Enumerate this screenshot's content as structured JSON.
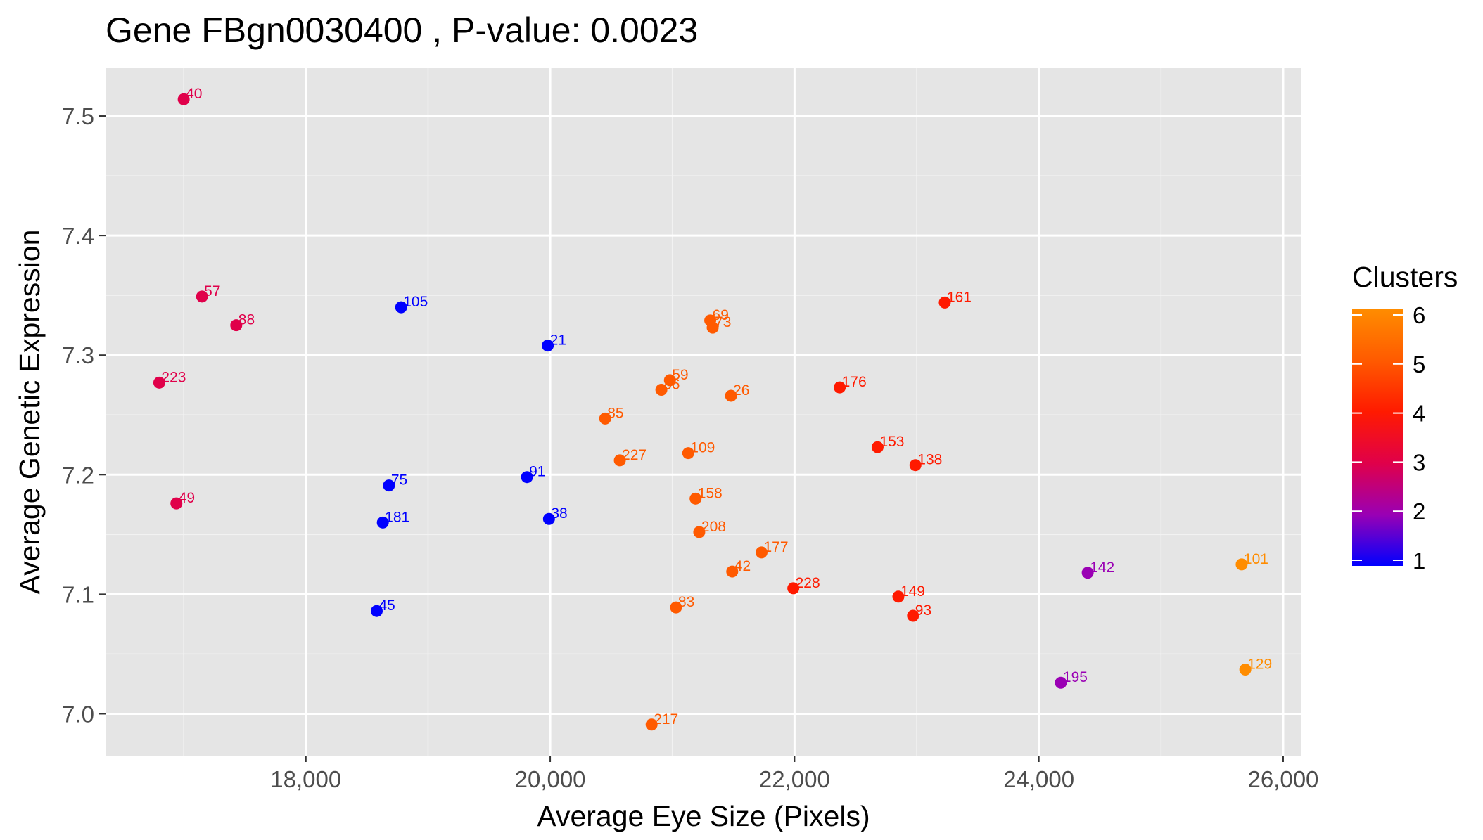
{
  "chart_data": {
    "type": "scatter",
    "title": "Gene FBgn0030400 , P-value: 0.0023",
    "xlabel": "Average Eye Size (Pixels)",
    "ylabel": "Average Genetic Expression",
    "xlim": [
      16360,
      26150
    ],
    "ylim": [
      6.965,
      7.54
    ],
    "x_ticks": [
      18000,
      20000,
      22000,
      24000,
      26000
    ],
    "x_tick_labels": [
      "18,000",
      "20,000",
      "22,000",
      "24,000",
      "26,000"
    ],
    "y_ticks": [
      7.0,
      7.1,
      7.2,
      7.3,
      7.4,
      7.5
    ],
    "y_tick_labels": [
      "7.0",
      "7.1",
      "7.2",
      "7.3",
      "7.4",
      "7.5"
    ],
    "grid": true,
    "background": "#e5e5e5",
    "legend": {
      "title": "Clusters",
      "position": "right",
      "ticks": [
        1,
        2,
        3,
        4,
        5,
        6
      ],
      "tick_labels": [
        "1",
        "2",
        "3",
        "4",
        "5",
        "6"
      ],
      "gradient_colors": [
        "#0000ff",
        "#9a00b4",
        "#e0004a",
        "#ff1a00",
        "#ff5a00",
        "#ff8c00"
      ]
    },
    "points": [
      {
        "label": "40",
        "x": 17000,
        "y": 7.514,
        "cluster": 3
      },
      {
        "label": "57",
        "x": 17150,
        "y": 7.349,
        "cluster": 3
      },
      {
        "label": "88",
        "x": 17430,
        "y": 7.325,
        "cluster": 3
      },
      {
        "label": "223",
        "x": 16800,
        "y": 7.277,
        "cluster": 3
      },
      {
        "label": "49",
        "x": 16940,
        "y": 7.176,
        "cluster": 3
      },
      {
        "label": "105",
        "x": 18780,
        "y": 7.34,
        "cluster": 1
      },
      {
        "label": "21",
        "x": 19980,
        "y": 7.308,
        "cluster": 1
      },
      {
        "label": "75",
        "x": 18680,
        "y": 7.191,
        "cluster": 1
      },
      {
        "label": "91",
        "x": 19810,
        "y": 7.198,
        "cluster": 1
      },
      {
        "label": "181",
        "x": 18630,
        "y": 7.16,
        "cluster": 1
      },
      {
        "label": "38",
        "x": 19990,
        "y": 7.163,
        "cluster": 1
      },
      {
        "label": "45",
        "x": 18580,
        "y": 7.086,
        "cluster": 1
      },
      {
        "label": "69",
        "x": 21310,
        "y": 7.329,
        "cluster": 5
      },
      {
        "label": "73",
        "x": 21330,
        "y": 7.323,
        "cluster": 5
      },
      {
        "label": "59",
        "x": 20980,
        "y": 7.279,
        "cluster": 5
      },
      {
        "label": "86",
        "x": 20910,
        "y": 7.271,
        "cluster": 5
      },
      {
        "label": "26",
        "x": 21480,
        "y": 7.266,
        "cluster": 5
      },
      {
        "label": "85",
        "x": 20450,
        "y": 7.247,
        "cluster": 5
      },
      {
        "label": "227",
        "x": 20570,
        "y": 7.212,
        "cluster": 5
      },
      {
        "label": "109",
        "x": 21130,
        "y": 7.218,
        "cluster": 5
      },
      {
        "label": "158",
        "x": 21190,
        "y": 7.18,
        "cluster": 5
      },
      {
        "label": "208",
        "x": 21220,
        "y": 7.152,
        "cluster": 5
      },
      {
        "label": "177",
        "x": 21730,
        "y": 7.135,
        "cluster": 5
      },
      {
        "label": "42",
        "x": 21490,
        "y": 7.119,
        "cluster": 5
      },
      {
        "label": "83",
        "x": 21030,
        "y": 7.089,
        "cluster": 5
      },
      {
        "label": "217",
        "x": 20830,
        "y": 6.991,
        "cluster": 5
      },
      {
        "label": "161",
        "x": 23230,
        "y": 7.344,
        "cluster": 4
      },
      {
        "label": "176",
        "x": 22370,
        "y": 7.273,
        "cluster": 4
      },
      {
        "label": "153",
        "x": 22680,
        "y": 7.223,
        "cluster": 4
      },
      {
        "label": "138",
        "x": 22990,
        "y": 7.208,
        "cluster": 4
      },
      {
        "label": "228",
        "x": 21990,
        "y": 7.105,
        "cluster": 4
      },
      {
        "label": "149",
        "x": 22850,
        "y": 7.098,
        "cluster": 4
      },
      {
        "label": "93",
        "x": 22970,
        "y": 7.082,
        "cluster": 4
      },
      {
        "label": "142",
        "x": 24400,
        "y": 7.118,
        "cluster": 2
      },
      {
        "label": "195",
        "x": 24180,
        "y": 7.026,
        "cluster": 2
      },
      {
        "label": "101",
        "x": 25660,
        "y": 7.125,
        "cluster": 6
      },
      {
        "label": "129",
        "x": 25690,
        "y": 7.037,
        "cluster": 6
      }
    ]
  }
}
